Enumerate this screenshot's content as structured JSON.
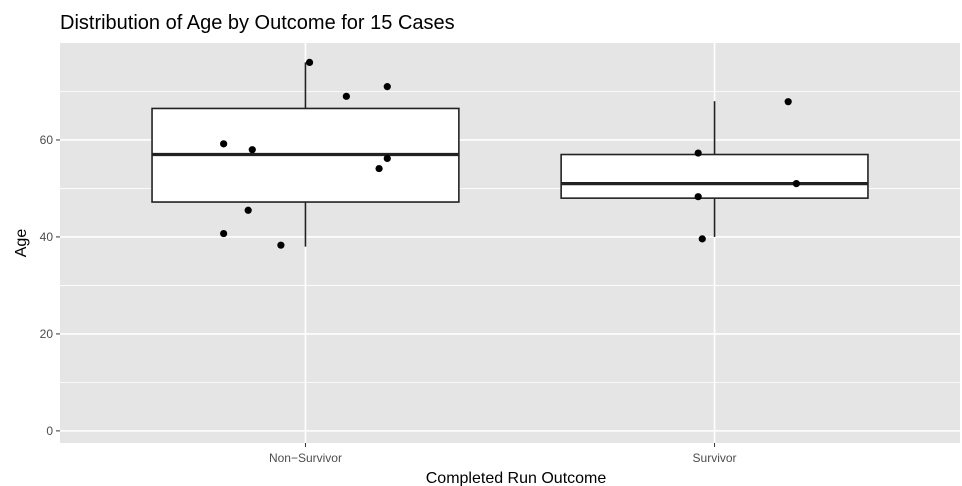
{
  "chart_data": {
    "type": "boxplot",
    "title": "Distribution of Age by Outcome for 15 Cases",
    "xlabel": "Completed Run Outcome",
    "ylabel": "Age",
    "categories": [
      "Non−Survivor",
      "Survivor"
    ],
    "ylim": [
      -2.5,
      80
    ],
    "yticks": [
      0,
      20,
      40,
      60
    ],
    "grid": true,
    "legend": "none",
    "colors": {
      "panel_background": "#e5e5e5",
      "grid_line": "#ffffff",
      "box_stroke": "#222222",
      "point": "#000000"
    },
    "boxes": [
      {
        "category": "Non−Survivor",
        "whisker_low": 38,
        "q1": 47.2,
        "median": 57,
        "q3": 66.5,
        "whisker_high": 76
      },
      {
        "category": "Survivor",
        "whisker_low": 40,
        "q1": 48,
        "median": 51,
        "q3": 57,
        "whisker_high": 68
      }
    ],
    "points": [
      {
        "category": "Non−Survivor",
        "jitter": -0.2,
        "y": 59.2
      },
      {
        "category": "Non−Survivor",
        "jitter": -0.13,
        "y": 58
      },
      {
        "category": "Non−Survivor",
        "jitter": -0.14,
        "y": 45.5
      },
      {
        "category": "Non−Survivor",
        "jitter": -0.2,
        "y": 40.7
      },
      {
        "category": "Non−Survivor",
        "jitter": -0.06,
        "y": 38.3
      },
      {
        "category": "Non−Survivor",
        "jitter": 0.01,
        "y": 76
      },
      {
        "category": "Non−Survivor",
        "jitter": 0.1,
        "y": 69
      },
      {
        "category": "Non−Survivor",
        "jitter": 0.2,
        "y": 71
      },
      {
        "category": "Non−Survivor",
        "jitter": 0.2,
        "y": 56.2
      },
      {
        "category": "Non−Survivor",
        "jitter": 0.18,
        "y": 54.1
      },
      {
        "category": "Survivor",
        "jitter": -0.04,
        "y": 57.3
      },
      {
        "category": "Survivor",
        "jitter": -0.04,
        "y": 48.3
      },
      {
        "category": "Survivor",
        "jitter": -0.03,
        "y": 39.6
      },
      {
        "category": "Survivor",
        "jitter": 0.18,
        "y": 67.9
      },
      {
        "category": "Survivor",
        "jitter": 0.2,
        "y": 51
      }
    ]
  }
}
